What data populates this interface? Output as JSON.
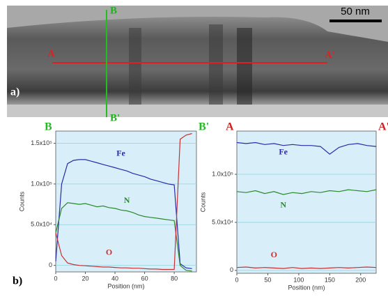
{
  "image": {
    "scale_bar": "50 nm",
    "panel_label": "a)",
    "line_a": [
      "A",
      "A'"
    ],
    "line_b": [
      "B",
      "B'"
    ]
  },
  "panel_label_b": "b)",
  "chart_data": [
    {
      "type": "line",
      "corner_labels": [
        "B",
        "B'"
      ],
      "corner_color": "#22bb22",
      "xlabel": "Position (nm)",
      "ylabel": "Counts",
      "x": [
        0,
        4,
        8,
        12,
        16,
        20,
        24,
        28,
        32,
        36,
        40,
        44,
        48,
        52,
        56,
        60,
        64,
        68,
        72,
        76,
        80,
        84,
        88,
        92
      ],
      "xlim": [
        0,
        95
      ],
      "xticks": [
        0,
        20,
        40,
        60,
        80
      ],
      "ylim": [
        -8000,
        165000
      ],
      "yticks": [
        0,
        {
          "value": 50000,
          "label": "5.0x10⁴"
        },
        {
          "value": 100000,
          "label": "1.0x10⁵"
        },
        {
          "value": 150000,
          "label": "1.5x10⁵"
        }
      ],
      "grid": true,
      "series": [
        {
          "name": "Fe",
          "color": "#2a2aa8",
          "values": [
            5000,
            100000,
            125000,
            129000,
            130000,
            130000,
            128000,
            126000,
            124000,
            122000,
            120000,
            118000,
            116000,
            113000,
            111000,
            109000,
            106000,
            104000,
            102000,
            100000,
            99000,
            2000,
            -3000,
            -4000
          ]
        },
        {
          "name": "N",
          "color": "#2a8a2a",
          "values": [
            40000,
            70000,
            77000,
            76000,
            75000,
            76000,
            74000,
            72000,
            73000,
            71000,
            70000,
            68000,
            67000,
            65000,
            62000,
            60000,
            59000,
            58000,
            57000,
            56000,
            55000,
            0,
            -6000,
            -7000
          ]
        },
        {
          "name": "O",
          "color": "#c83030",
          "values": [
            40000,
            12000,
            3000,
            1000,
            0,
            -500,
            -1000,
            -1500,
            -2000,
            -2000,
            -2500,
            -3000,
            -3000,
            -3500,
            -3500,
            -4000,
            -4500,
            -4500,
            -5000,
            -5000,
            -5000,
            155000,
            160000,
            162000
          ]
        }
      ]
    },
    {
      "type": "line",
      "corner_labels": [
        "A",
        "A'"
      ],
      "corner_color": "#cc2222",
      "xlabel": "Position (nm)",
      "ylabel": "Counts",
      "x": [
        0,
        15,
        30,
        45,
        60,
        75,
        90,
        105,
        120,
        135,
        150,
        165,
        180,
        195,
        210,
        225
      ],
      "xlim": [
        0,
        225
      ],
      "xticks": [
        0,
        50,
        100,
        150,
        200
      ],
      "ylim": [
        -3000,
        145000
      ],
      "yticks": [
        0,
        {
          "value": 50000,
          "label": "5.0x10⁴"
        },
        {
          "value": 100000,
          "label": "1.0x10⁵"
        }
      ],
      "grid": true,
      "series": [
        {
          "name": "Fe",
          "color": "#2a2aa8",
          "values": [
            133000,
            132000,
            133000,
            131000,
            132000,
            130000,
            131000,
            130000,
            130000,
            129000,
            121000,
            128000,
            131000,
            132000,
            130000,
            129000
          ]
        },
        {
          "name": "N",
          "color": "#2a8a2a",
          "values": [
            82000,
            81000,
            83000,
            80000,
            82000,
            79000,
            81000,
            80000,
            82000,
            81000,
            83000,
            82000,
            84000,
            83000,
            82000,
            84000
          ]
        },
        {
          "name": "O",
          "color": "#c83030",
          "values": [
            3000,
            3500,
            2500,
            3000,
            2500,
            2000,
            3000,
            2000,
            2500,
            2000,
            2500,
            3000,
            2500,
            3000,
            3500,
            3000
          ]
        }
      ]
    }
  ]
}
